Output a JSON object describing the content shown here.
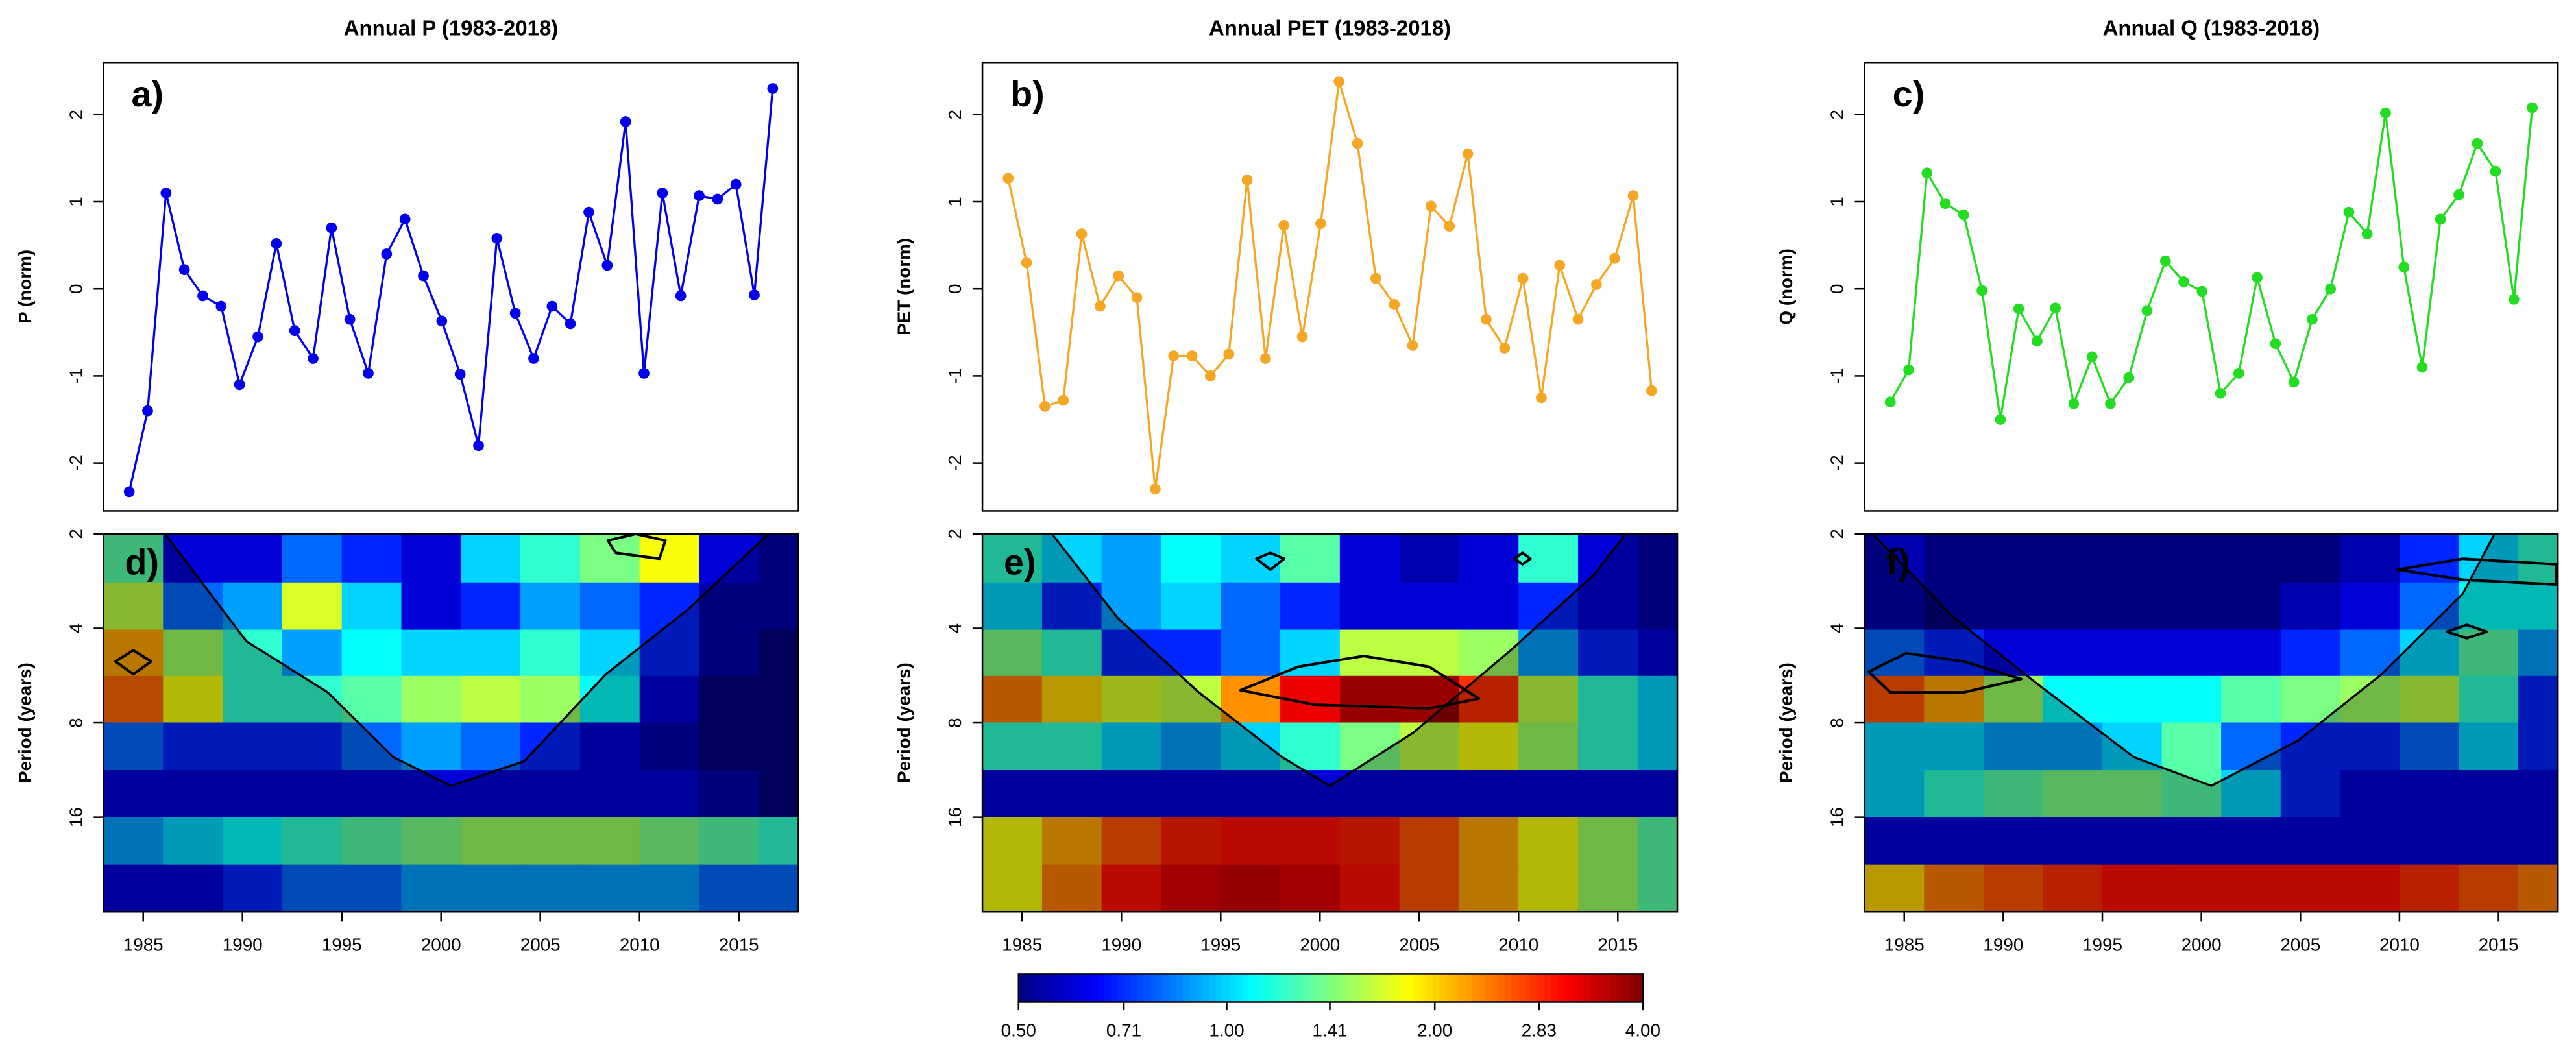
{
  "chart_data": [
    {
      "type": "line",
      "title": "Annual P (1983-2018)",
      "panel_label": "a)",
      "ylabel": "P (norm)",
      "color": "#0000ee",
      "x": [
        1983,
        1984,
        1985,
        1986,
        1987,
        1988,
        1989,
        1990,
        1991,
        1992,
        1993,
        1994,
        1995,
        1996,
        1997,
        1998,
        1999,
        2000,
        2001,
        2002,
        2003,
        2004,
        2005,
        2006,
        2007,
        2008,
        2009,
        2010,
        2011,
        2012,
        2013,
        2014,
        2015,
        2016,
        2017,
        2018
      ],
      "values": [
        -2.33,
        -1.4,
        1.1,
        0.22,
        -0.08,
        -0.2,
        -1.1,
        -0.55,
        0.52,
        -0.48,
        -0.8,
        0.7,
        -0.35,
        -0.97,
        0.4,
        0.8,
        0.15,
        -0.37,
        -0.98,
        -1.8,
        0.58,
        -0.28,
        -0.8,
        -0.2,
        -0.4,
        0.88,
        0.27,
        1.92,
        -0.97,
        1.1,
        -0.08,
        1.07,
        1.03,
        1.2,
        -0.07,
        2.3
      ],
      "xlim": [
        1981.6,
        2019.4
      ],
      "ylim": [
        -2.55,
        2.6
      ],
      "yticks": [
        -2,
        -1,
        0,
        1,
        2
      ]
    },
    {
      "type": "line",
      "title": "Annual PET (1983-2018)",
      "panel_label": "b)",
      "ylabel": "PET (norm)",
      "color": "#f5a623",
      "x": [
        1983,
        1984,
        1985,
        1986,
        1987,
        1988,
        1989,
        1990,
        1991,
        1992,
        1993,
        1994,
        1995,
        1996,
        1997,
        1998,
        1999,
        2000,
        2001,
        2002,
        2003,
        2004,
        2005,
        2006,
        2007,
        2008,
        2009,
        2010,
        2011,
        2012,
        2013,
        2014,
        2015,
        2016,
        2017,
        2018
      ],
      "values": [
        1.27,
        0.3,
        -1.35,
        -1.28,
        0.63,
        -0.2,
        0.15,
        -0.1,
        -2.3,
        -0.77,
        -0.77,
        -1.0,
        -0.75,
        1.25,
        -0.8,
        0.73,
        -0.55,
        0.75,
        2.38,
        1.67,
        0.12,
        -0.18,
        -0.65,
        0.95,
        0.72,
        1.55,
        -0.35,
        -0.68,
        0.12,
        -1.25,
        0.27,
        -0.35,
        0.05,
        0.35,
        1.07,
        -1.17
      ],
      "xlim": [
        1981.6,
        2019.4
      ],
      "ylim": [
        -2.55,
        2.6
      ],
      "yticks": [
        -2,
        -1,
        0,
        1,
        2
      ]
    },
    {
      "type": "line",
      "title": "Annual Q (1983-2018)",
      "panel_label": "c)",
      "ylabel": "Q (norm)",
      "color": "#22dd22",
      "x": [
        1983,
        1984,
        1985,
        1986,
        1987,
        1988,
        1989,
        1990,
        1991,
        1992,
        1993,
        1994,
        1995,
        1996,
        1997,
        1998,
        1999,
        2000,
        2001,
        2002,
        2003,
        2004,
        2005,
        2006,
        2007,
        2008,
        2009,
        2010,
        2011,
        2012,
        2013,
        2014,
        2015,
        2016,
        2017,
        2018
      ],
      "values": [
        -1.3,
        -0.93,
        1.33,
        0.98,
        0.85,
        -0.02,
        -1.5,
        -0.23,
        -0.6,
        -0.22,
        -1.32,
        -0.78,
        -1.32,
        -1.02,
        -0.25,
        0.32,
        0.08,
        -0.03,
        -1.2,
        -0.97,
        0.13,
        -0.63,
        -1.07,
        -0.35,
        0.0,
        0.88,
        0.63,
        2.02,
        0.25,
        -0.9,
        0.8,
        1.08,
        1.67,
        1.35,
        -0.12,
        2.08
      ],
      "xlim": [
        1981.6,
        2019.4
      ],
      "ylim": [
        -2.55,
        2.6
      ],
      "yticks": [
        -2,
        -1,
        0,
        1,
        2
      ]
    },
    {
      "type": "heatmap",
      "panel_label": "d)",
      "ylabel": "Period (years)",
      "x": [
        1984.5,
        1987.5,
        1990.5,
        1993.5,
        1996.5,
        1999.5,
        2002.5,
        2005.5,
        2008.5,
        2011.5,
        2014.5,
        2017.5
      ],
      "periods": [
        2.4,
        3.4,
        4.8,
        6.7,
        9.5,
        13.5,
        19,
        27
      ],
      "values": [
        [
          1.3,
          0.6,
          0.6,
          0.8,
          0.7,
          0.6,
          1.0,
          1.2,
          1.4,
          1.8,
          0.6,
          0.55
        ],
        [
          1.6,
          0.8,
          0.9,
          1.7,
          1.0,
          0.6,
          0.7,
          0.9,
          0.8,
          0.7,
          0.55,
          0.55
        ],
        [
          2.2,
          1.5,
          1.2,
          0.9,
          1.1,
          1.0,
          1.0,
          1.2,
          1.0,
          0.7,
          0.55,
          0.5
        ],
        [
          2.5,
          1.8,
          1.2,
          1.2,
          1.3,
          1.5,
          1.6,
          1.5,
          1.1,
          0.6,
          0.5,
          0.5
        ],
        [
          0.8,
          0.7,
          0.7,
          0.7,
          0.8,
          0.9,
          0.8,
          0.7,
          0.6,
          0.55,
          0.5,
          0.5
        ],
        [
          0.6,
          0.6,
          0.6,
          0.6,
          0.6,
          0.6,
          0.6,
          0.6,
          0.6,
          0.6,
          0.55,
          0.5
        ],
        [
          0.9,
          1.0,
          1.1,
          1.2,
          1.3,
          1.4,
          1.5,
          1.5,
          1.5,
          1.4,
          1.3,
          1.2
        ],
        [
          0.6,
          0.6,
          0.7,
          0.8,
          0.8,
          0.9,
          0.9,
          0.9,
          0.9,
          0.9,
          0.8,
          0.8
        ]
      ],
      "coi": {
        "x": [
          1986.1,
          1990.2,
          1994.3,
          1997.6,
          2000.5,
          2004.2,
          2008.3,
          2012.4,
          2016.5
        ],
        "y": [
          2,
          4.4,
          6.4,
          10.3,
          12.7,
          10.6,
          5.6,
          3.5,
          2
        ]
      },
      "contours": [
        {
          "x": [
            1983.6,
            1984.5,
            1985.4,
            1984.5
          ],
          "y": [
            5.1,
            4.7,
            5.1,
            5.6
          ]
        },
        {
          "x": [
            2008.4,
            2009.8,
            2011.3,
            2011.0,
            2008.8
          ],
          "y": [
            2.1,
            2.0,
            2.1,
            2.4,
            2.3
          ]
        }
      ],
      "xlim": [
        1983,
        2018
      ],
      "xticks": [
        1985,
        1990,
        1995,
        2000,
        2005,
        2010,
        2015
      ],
      "ylim": [
        2,
        32
      ],
      "yticks": [
        2,
        4,
        8,
        16
      ],
      "log_y": true,
      "y_inverted": true
    },
    {
      "type": "heatmap",
      "panel_label": "e)",
      "ylabel": "Period (years)",
      "x": [
        1984.5,
        1987.5,
        1990.5,
        1993.5,
        1996.5,
        1999.5,
        2002.5,
        2005.5,
        2008.5,
        2011.5,
        2014.5,
        2017.5
      ],
      "periods": [
        2.4,
        3.4,
        4.8,
        6.7,
        9.5,
        13.5,
        19,
        27
      ],
      "values": [
        [
          1.2,
          1.0,
          0.9,
          1.1,
          1.0,
          1.3,
          0.6,
          0.55,
          0.6,
          1.2,
          0.6,
          0.55
        ],
        [
          1.0,
          0.7,
          0.9,
          1.0,
          0.8,
          0.7,
          0.6,
          0.6,
          0.6,
          0.7,
          0.6,
          0.55
        ],
        [
          1.4,
          1.2,
          0.7,
          0.7,
          0.8,
          1.0,
          1.6,
          1.6,
          1.5,
          0.9,
          0.7,
          0.6
        ],
        [
          2.4,
          2.0,
          1.7,
          1.6,
          2.3,
          3.2,
          3.8,
          3.8,
          2.8,
          1.6,
          1.2,
          1.0
        ],
        [
          1.2,
          1.2,
          1.0,
          0.9,
          1.0,
          1.2,
          1.4,
          1.6,
          1.8,
          1.5,
          1.2,
          1.0
        ],
        [
          0.6,
          0.6,
          0.6,
          0.6,
          0.6,
          0.6,
          0.6,
          0.6,
          0.6,
          0.6,
          0.6,
          0.6
        ],
        [
          1.8,
          2.2,
          2.6,
          2.9,
          3.0,
          3.0,
          2.9,
          2.6,
          2.2,
          1.8,
          1.5,
          1.3
        ],
        [
          1.8,
          2.4,
          3.0,
          3.3,
          3.4,
          3.3,
          3.0,
          2.6,
          2.2,
          1.8,
          1.5,
          1.3
        ]
      ],
      "coi": {
        "x": [
          1986.5,
          1989.8,
          1993.9,
          1998.1,
          2000.5,
          2004.7,
          2009.6,
          2013.8,
          2015.4
        ],
        "y": [
          2,
          3.7,
          6.4,
          10.3,
          12.7,
          8.6,
          4.7,
          2.7,
          2
        ]
      },
      "contours": [
        {
          "x": [
            1996.8,
            1997.5,
            1998.2,
            1997.5
          ],
          "y": [
            2.4,
            2.3,
            2.4,
            2.6
          ]
        },
        {
          "x": [
            2009.8,
            2010.2,
            2010.6,
            2010.2
          ],
          "y": [
            2.4,
            2.3,
            2.4,
            2.5
          ]
        },
        {
          "x": [
            1996.0,
            1998.9,
            2002.2,
            2005.5,
            2008.0,
            2005.5,
            1999.7
          ],
          "y": [
            6.3,
            5.3,
            4.9,
            5.3,
            6.7,
            7.2,
            7.0
          ]
        }
      ],
      "xlim": [
        1983,
        2018
      ],
      "xticks": [
        1985,
        1990,
        1995,
        2000,
        2005,
        2010,
        2015
      ],
      "ylim": [
        2,
        32
      ],
      "yticks": [
        2,
        4,
        8,
        16
      ],
      "log_y": true,
      "y_inverted": true
    },
    {
      "type": "heatmap",
      "panel_label": "f)",
      "ylabel": "Period (years)",
      "x": [
        1984.5,
        1987.5,
        1990.5,
        1993.5,
        1996.5,
        1999.5,
        2002.5,
        2005.5,
        2008.5,
        2011.5,
        2014.5,
        2017.5
      ],
      "periods": [
        2.4,
        3.4,
        4.8,
        6.7,
        9.5,
        13.5,
        19,
        27
      ],
      "values": [
        [
          0.55,
          0.5,
          0.5,
          0.5,
          0.5,
          0.5,
          0.5,
          0.5,
          0.55,
          0.7,
          1.0,
          1.2
        ],
        [
          0.55,
          0.5,
          0.5,
          0.5,
          0.5,
          0.5,
          0.5,
          0.55,
          0.6,
          0.8,
          1.1,
          1.1
        ],
        [
          0.8,
          0.7,
          0.6,
          0.6,
          0.6,
          0.6,
          0.6,
          0.7,
          0.8,
          1.0,
          1.3,
          0.9
        ],
        [
          2.6,
          2.2,
          1.5,
          1.1,
          1.1,
          1.1,
          1.3,
          1.4,
          1.5,
          1.6,
          1.2,
          0.7
        ],
        [
          1.0,
          1.0,
          0.9,
          0.9,
          1.0,
          1.3,
          0.8,
          0.7,
          0.7,
          0.8,
          1.0,
          0.7
        ],
        [
          1.0,
          1.2,
          1.3,
          1.4,
          1.4,
          1.3,
          1.0,
          0.7,
          0.6,
          0.6,
          0.6,
          0.6
        ],
        [
          0.6,
          0.6,
          0.6,
          0.6,
          0.6,
          0.6,
          0.6,
          0.6,
          0.6,
          0.6,
          0.6,
          0.6
        ],
        [
          2.0,
          2.4,
          2.6,
          2.8,
          3.0,
          3.0,
          3.0,
          3.0,
          3.0,
          2.8,
          2.6,
          2.4
        ]
      ],
      "coi": {
        "x": [
          1983.4,
          1987.5,
          1991.7,
          1996.6,
          2000.5,
          2004.9,
          2009.1,
          2013.2,
          2014.8
        ],
        "y": [
          2,
          3.7,
          6.0,
          10.3,
          12.7,
          9.1,
          5.6,
          3.1,
          2
        ]
      },
      "contours": [
        {
          "x": [
            1983.2,
            1985.1,
            1988.0,
            1990.9,
            1988.0,
            1984.3
          ],
          "y": [
            5.5,
            4.8,
            5.1,
            5.8,
            6.4,
            6.4
          ]
        },
        {
          "x": [
            2012.4,
            2013.4,
            2014.4,
            2013.4
          ],
          "y": [
            4.1,
            3.9,
            4.1,
            4.3
          ]
        },
        {
          "x": [
            2009.9,
            2013.2,
            2017.9,
            2017.9,
            2013.2
          ],
          "y": [
            2.6,
            2.4,
            2.5,
            2.9,
            2.8
          ]
        }
      ],
      "xlim": [
        1983,
        2018
      ],
      "xticks": [
        1985,
        1990,
        1995,
        2000,
        2005,
        2010,
        2015
      ],
      "ylim": [
        2,
        32
      ],
      "yticks": [
        2,
        4,
        8,
        16
      ],
      "log_y": true,
      "y_inverted": true
    }
  ],
  "colorbar": {
    "lim": [
      0.5,
      4
    ],
    "log": true,
    "colors": [
      "#00007f",
      "#0000ff",
      "#007fff",
      "#00ffff",
      "#7fff7f",
      "#ffff00",
      "#ff7f00",
      "#ff0000",
      "#7f0000"
    ],
    "ticks": [
      {
        "value": 0.5,
        "label": "0.50"
      },
      {
        "value": 0.71,
        "label": "0.71"
      },
      {
        "value": 1,
        "label": "1.00"
      },
      {
        "value": 1.41,
        "label": "1.41"
      },
      {
        "value": 2,
        "label": "2.00"
      },
      {
        "value": 2.83,
        "label": "2.83"
      },
      {
        "value": 4,
        "label": "4.00"
      }
    ]
  }
}
